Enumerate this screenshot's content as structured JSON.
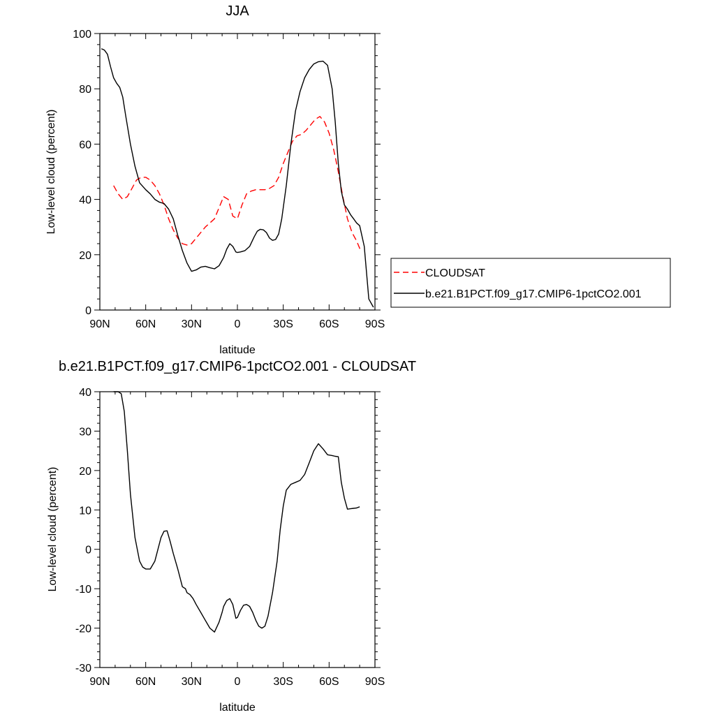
{
  "chart_data": [
    {
      "type": "line",
      "title": "JJA",
      "xlabel": "latitude",
      "ylabel": "Low-level cloud (percent)",
      "xlim": [
        -90,
        90
      ],
      "ylim": [
        0,
        100
      ],
      "xticks": [
        -90,
        -60,
        -30,
        0,
        30,
        60,
        90
      ],
      "xtick_labels": [
        "90N",
        "60N",
        "30N",
        "0",
        "30S",
        "60S",
        "90S"
      ],
      "yticks": [
        0,
        20,
        40,
        60,
        80,
        100
      ],
      "ytick_labels": [
        "0",
        "20",
        "40",
        "60",
        "80",
        "100"
      ],
      "legend_position": "right",
      "series": [
        {
          "name": "CLOUDSAT",
          "color": "#ff0000",
          "dash": "dashed",
          "x": [
            -81,
            -78,
            -75,
            -72,
            -69,
            -66,
            -63,
            -60,
            -57,
            -54,
            -51,
            -48,
            -45,
            -42,
            -39,
            -36,
            -33,
            -30,
            -27,
            -24,
            -21,
            -18,
            -15,
            -12,
            -9,
            -6,
            -3,
            0,
            3,
            6,
            9,
            12,
            15,
            18,
            21,
            24,
            27,
            30,
            33,
            36,
            39,
            42,
            45,
            48,
            51,
            54,
            57,
            60,
            63,
            66,
            69,
            72,
            75,
            78,
            81
          ],
          "y": [
            45,
            42,
            40,
            41,
            44,
            47,
            48,
            48,
            47,
            45,
            42,
            38,
            33,
            29,
            26,
            24,
            23.5,
            24,
            26,
            28,
            30,
            31.5,
            33,
            37,
            41,
            40,
            34,
            33,
            38,
            42,
            43,
            43.5,
            43.5,
            43.5,
            44,
            45,
            48,
            53,
            57,
            61,
            63,
            63.5,
            65,
            67,
            69,
            70,
            68,
            64,
            58,
            50,
            41,
            33,
            28,
            25,
            21
          ]
        },
        {
          "name": "b.e21.B1PCT.f09_g17.CMIP6-1pctCO2.001",
          "color": "#000000",
          "dash": "solid",
          "x": [
            -89,
            -87,
            -85,
            -83,
            -81,
            -79,
            -77,
            -75,
            -73,
            -70,
            -67,
            -64,
            -60,
            -57,
            -54,
            -51,
            -48,
            -45,
            -42,
            -39,
            -36,
            -33,
            -30,
            -27,
            -24,
            -21,
            -18,
            -15,
            -12,
            -9,
            -7,
            -5,
            -3,
            -1,
            0,
            2,
            5,
            8,
            11,
            13,
            15,
            17,
            19,
            21,
            23,
            25,
            27,
            29,
            32,
            35,
            38,
            41,
            44,
            47,
            50,
            53,
            56,
            59,
            62,
            64,
            66,
            68,
            70,
            72,
            74,
            76,
            78,
            80,
            83,
            86,
            88,
            89
          ],
          "y": [
            94.5,
            94,
            92.5,
            88,
            84,
            82,
            80.5,
            77,
            70,
            60,
            52,
            46,
            43.5,
            42,
            40,
            39,
            38.5,
            36.5,
            33,
            27,
            21.5,
            17,
            14,
            14.5,
            15.5,
            15.8,
            15.3,
            14.9,
            16,
            19,
            22,
            24,
            23,
            21,
            20.8,
            21,
            21.5,
            23,
            26.5,
            28.5,
            29.2,
            29,
            28,
            26,
            25.2,
            25.5,
            27.5,
            33,
            45,
            60,
            72,
            79,
            84,
            87,
            89,
            89.8,
            90,
            88.5,
            80,
            68,
            53,
            43,
            38,
            36.5,
            34.5,
            33,
            31.5,
            30.5,
            23,
            4,
            2,
            1
          ]
        }
      ]
    },
    {
      "type": "line",
      "title": "b.e21.B1PCT.f09_g17.CMIP6-1pctCO2.001 - CLOUDSAT",
      "xlabel": "latitude",
      "ylabel": "Low-level cloud (percent)",
      "xlim": [
        -90,
        90
      ],
      "ylim": [
        -30,
        40
      ],
      "xticks": [
        -90,
        -60,
        -30,
        0,
        30,
        60,
        90
      ],
      "xtick_labels": [
        "90N",
        "60N",
        "30N",
        "0",
        "30S",
        "60S",
        "90S"
      ],
      "yticks": [
        -30,
        -20,
        -10,
        0,
        10,
        20,
        30,
        40
      ],
      "ytick_labels": [
        "-30",
        "-20",
        "-10",
        "0",
        "10",
        "20",
        "30",
        "40"
      ],
      "series": [
        {
          "color": "#000000",
          "dash": "solid",
          "x": [
            -81,
            -78,
            -76,
            -74,
            -72,
            -70,
            -67,
            -64,
            -62,
            -60,
            -57,
            -54,
            -52,
            -50,
            -48,
            -46,
            -44,
            -42,
            -39,
            -36,
            -34,
            -33,
            -31,
            -29,
            -27,
            -24,
            -21,
            -18,
            -15,
            -12,
            -10,
            -9,
            -7,
            -5,
            -3,
            -1,
            0,
            2,
            4,
            6,
            8,
            10,
            12,
            14,
            16,
            18,
            20,
            23,
            26,
            28,
            30,
            32,
            35,
            38,
            41,
            44,
            47,
            50,
            53,
            56,
            59,
            62,
            64,
            66,
            68,
            70,
            72,
            74,
            76,
            78,
            80
          ],
          "y": [
            40,
            40,
            39.5,
            35,
            25,
            14,
            3,
            -3,
            -4.5,
            -5,
            -5,
            -3,
            0,
            3,
            4.6,
            4.7,
            2,
            -1,
            -5,
            -9.5,
            -10,
            -11,
            -11.5,
            -12.5,
            -14,
            -16,
            -18,
            -20,
            -21,
            -18.5,
            -16,
            -14.5,
            -13,
            -12.5,
            -14,
            -17.5,
            -17.3,
            -15.5,
            -14.2,
            -14,
            -14.5,
            -16,
            -18,
            -19.5,
            -20,
            -19.5,
            -17,
            -11,
            -3,
            5,
            11,
            15,
            16.5,
            17,
            17.5,
            19,
            22,
            25,
            26.8,
            25.5,
            24,
            23.8,
            23.6,
            23.5,
            17,
            13,
            10.2,
            10.3,
            10.4,
            10.5,
            10.8
          ]
        }
      ]
    }
  ]
}
